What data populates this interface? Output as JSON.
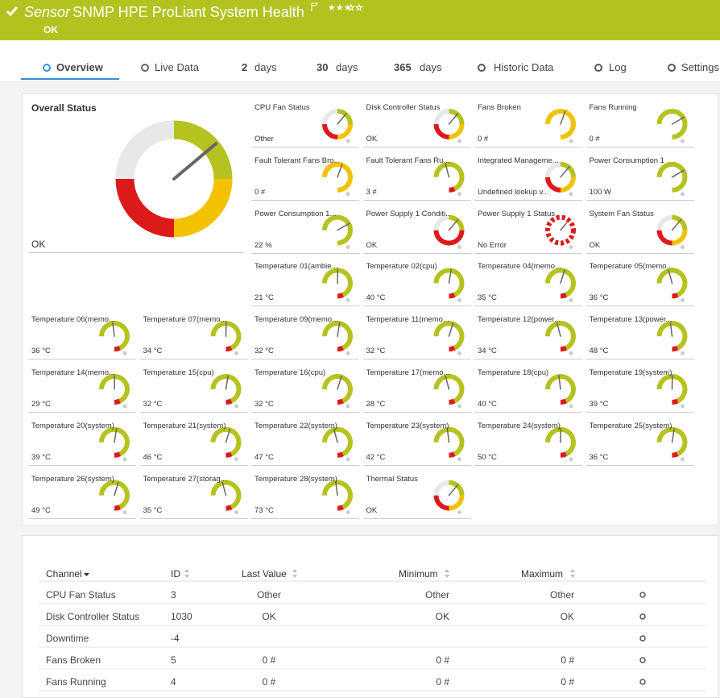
{
  "header": {
    "title_prefix": "Sensor",
    "title": "SNMP HPE ProLiant System Health",
    "status": "OK"
  },
  "tabs": [
    {
      "label": "Overview"
    },
    {
      "label": "Live Data"
    },
    {
      "num": "2",
      "label": "days"
    },
    {
      "num": "30",
      "label": "days"
    },
    {
      "num": "365",
      "label": "days"
    },
    {
      "label": "Historic Data"
    },
    {
      "label": "Log"
    },
    {
      "label": "Settings"
    }
  ],
  "overall": {
    "title": "Overall Status",
    "value": "OK"
  },
  "gauges": [
    {
      "label": "CPU Fan Status",
      "value": "Other"
    },
    {
      "label": "Disk Controller Status",
      "value": "OK"
    },
    {
      "label": "Fans Broken",
      "value": "0 #"
    },
    {
      "label": "Fans Running",
      "value": "0 #"
    },
    {
      "label": "Fault Tolerant Fans Bro...",
      "value": "0 #"
    },
    {
      "label": "Fault Tolerant Fans Ru...",
      "value": "3 #"
    },
    {
      "label": "Integrated Manageme...",
      "value": "Undefined lookup v..."
    },
    {
      "label": "Power Consumption 1",
      "value": "100 W"
    },
    {
      "label": "Power Consumption 1...",
      "value": "22 %"
    },
    {
      "label": "Power Supply 1 Conditi...",
      "value": "OK"
    },
    {
      "label": "Power Supply 1 Status",
      "value": "No Error"
    },
    {
      "label": "System Fan Status",
      "value": "OK"
    },
    {
      "label": "Temperature 01(ambie...",
      "value": "21 °C"
    },
    {
      "label": "Temperature 02(cpu)",
      "value": "40 °C"
    },
    {
      "label": "Temperature 04(memo...",
      "value": "35 °C"
    },
    {
      "label": "Temperature 05(memo...",
      "value": "36 °C"
    },
    {
      "label": "Temperature 06(memo...",
      "value": "36 °C"
    },
    {
      "label": "Temperature 07(memo...",
      "value": "34 °C"
    },
    {
      "label": "Temperature 09(memo...",
      "value": "32 °C"
    },
    {
      "label": "Temperature 11(memo...",
      "value": "32 °C"
    },
    {
      "label": "Temperature 12(power...",
      "value": "34 °C"
    },
    {
      "label": "Temperature 13(power...",
      "value": "48 °C"
    },
    {
      "label": "Temperature 14(memo...",
      "value": "29 °C"
    },
    {
      "label": "Temperature 15(cpu)",
      "value": "32 °C"
    },
    {
      "label": "Temperature 16(cpu)",
      "value": "32 °C"
    },
    {
      "label": "Temperature 17(memo...",
      "value": "28 °C"
    },
    {
      "label": "Temperature 18(cpu)",
      "value": "40 °C"
    },
    {
      "label": "Temperature 19(system)",
      "value": "39 °C"
    },
    {
      "label": "Temperature 20(system)",
      "value": "39 °C"
    },
    {
      "label": "Temperature 21(system)",
      "value": "46 °C"
    },
    {
      "label": "Temperature 22(system)",
      "value": "47 °C"
    },
    {
      "label": "Temperature 23(system)",
      "value": "42 °C"
    },
    {
      "label": "Temperature 24(system)",
      "value": "50 °C"
    },
    {
      "label": "Temperature 25(system)",
      "value": "36 °C"
    },
    {
      "label": "Temperature 26(system)",
      "value": "49 °C"
    },
    {
      "label": "Temperature 27(storag...",
      "value": "35 °C"
    },
    {
      "label": "Temperature 28(system)",
      "value": "73 °C"
    },
    {
      "label": "Thermal Status",
      "value": "OK"
    }
  ],
  "table": {
    "columns": [
      "Channel",
      "ID",
      "Last Value",
      "Minimum",
      "Maximum"
    ],
    "rows": [
      [
        "CPU Fan Status",
        "3",
        "Other",
        "Other",
        "Other"
      ],
      [
        "Disk Controller Status",
        "1030",
        "OK",
        "OK",
        "OK"
      ],
      [
        "Downtime",
        "-4",
        null,
        null,
        null
      ],
      [
        "Fans Broken",
        "5",
        "0 #",
        "0 #",
        "0 #"
      ],
      [
        "Fans Running",
        "4",
        "0 #",
        "0 #",
        "0 #"
      ]
    ]
  }
}
